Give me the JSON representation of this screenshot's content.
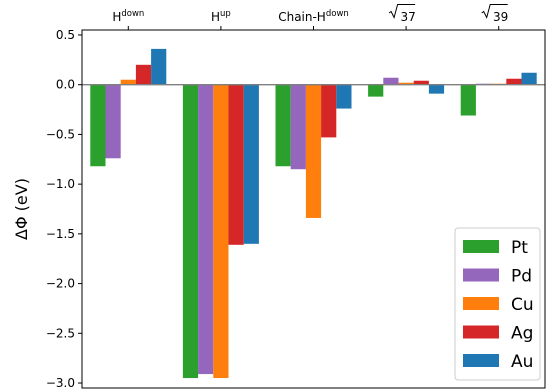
{
  "chart_data": {
    "type": "bar",
    "title": "",
    "xlabel": "",
    "ylabel": "ΔΦ (eV)",
    "ylim": [
      -3.05,
      0.55
    ],
    "yticks": [
      0.5,
      0.0,
      -0.5,
      -1.0,
      -1.5,
      -2.0,
      -2.5,
      -3.0
    ],
    "ytick_labels": [
      "0.5",
      "0.0",
      "−0.5",
      "−1.0",
      "−1.5",
      "−2.0",
      "−2.5",
      "−3.0"
    ],
    "x_axis_position": "top",
    "zero_line": true,
    "grid": false,
    "legend_position": "bottom-right",
    "categories": [
      {
        "base": "H",
        "sup": "down",
        "sqrt": false
      },
      {
        "base": "H",
        "sup": "up",
        "sqrt": false
      },
      {
        "base": "Chain-H",
        "sup": "down",
        "sqrt": false
      },
      {
        "base": "37",
        "sup": "",
        "sqrt": true
      },
      {
        "base": "39",
        "sup": "",
        "sqrt": true
      }
    ],
    "series": [
      {
        "name": "Pt",
        "color": "#2ca02c",
        "values": [
          -0.82,
          -2.95,
          -0.82,
          -0.12,
          -0.31
        ]
      },
      {
        "name": "Pd",
        "color": "#9467bd",
        "values": [
          -0.74,
          -2.91,
          -0.85,
          0.07,
          0.01
        ]
      },
      {
        "name": "Cu",
        "color": "#ff7f0e",
        "values": [
          0.05,
          -2.95,
          -1.34,
          0.02,
          0.01
        ]
      },
      {
        "name": "Ag",
        "color": "#d62728",
        "values": [
          0.2,
          -1.61,
          -0.53,
          0.04,
          0.06
        ]
      },
      {
        "name": "Au",
        "color": "#1f77b4",
        "values": [
          0.36,
          -1.6,
          -0.24,
          -0.09,
          0.12
        ]
      }
    ]
  }
}
